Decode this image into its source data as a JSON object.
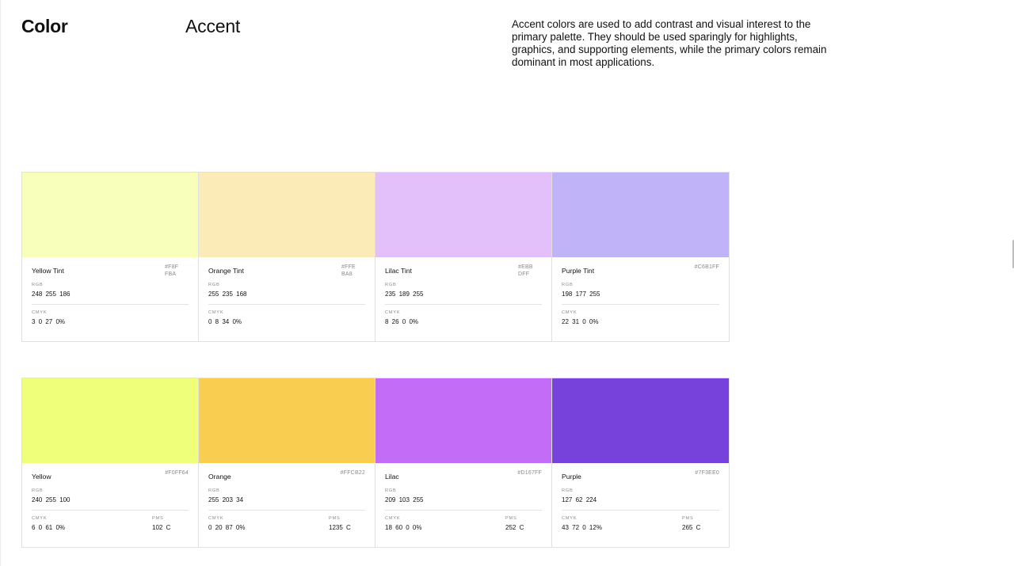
{
  "header": {
    "section": "Color",
    "subsection": "Accent",
    "description": "Accent colors are used to add contrast and visual interest to the primary palette. They should be used sparingly for highlights, graphics, and supporting elements, while the primary colors remain dominant in most applications."
  },
  "labels": {
    "rgb": "RGB",
    "cmyk": "CMYK",
    "pms": "PMS"
  },
  "tints": [
    {
      "name": "Yellow Tint",
      "hex": "#F8FFBA",
      "swatch": "#F8FFBA",
      "rgb": "248  255  186",
      "cmyk": "3  0  27  0%"
    },
    {
      "name": "Orange Tint",
      "hex": "#FFEBA8",
      "swatch": "#FBEBB6",
      "rgb": "255  235  168",
      "cmyk": "0  8  34  0%"
    },
    {
      "name": "Lilac Tint",
      "hex": "#EBBDFF",
      "swatch": "#E4C0FB",
      "rgb": "235  189  255",
      "cmyk": "8  26  0  0%"
    },
    {
      "name": "Purple Tint",
      "hex": "#C6B1FF",
      "swatch": "#C1B3F8",
      "rgb": "198  177  255",
      "cmyk": "22  31  0  0%"
    }
  ],
  "base": [
    {
      "name": "Yellow",
      "hex": "#F0FF64",
      "swatch": "#F0FF7A",
      "rgb": "240  255  100",
      "cmyk": "6  0  61  0%",
      "pms": "102 C"
    },
    {
      "name": "Orange",
      "hex": "#FFCB22",
      "swatch": "#F8CD50",
      "rgb": "255  203  34",
      "cmyk": "0  20  87  0%",
      "pms": "1235 C"
    },
    {
      "name": "Lilac",
      "hex": "#D167FF",
      "swatch": "#C36CF7",
      "rgb": "209  103  255",
      "cmyk": "18  60  0  0%",
      "pms": "252 C"
    },
    {
      "name": "Purple",
      "hex": "#7F3EE0",
      "swatch": "#7741DB",
      "rgb": "127  62  224",
      "cmyk": "43  72  0  12%",
      "pms": "265 C"
    }
  ]
}
